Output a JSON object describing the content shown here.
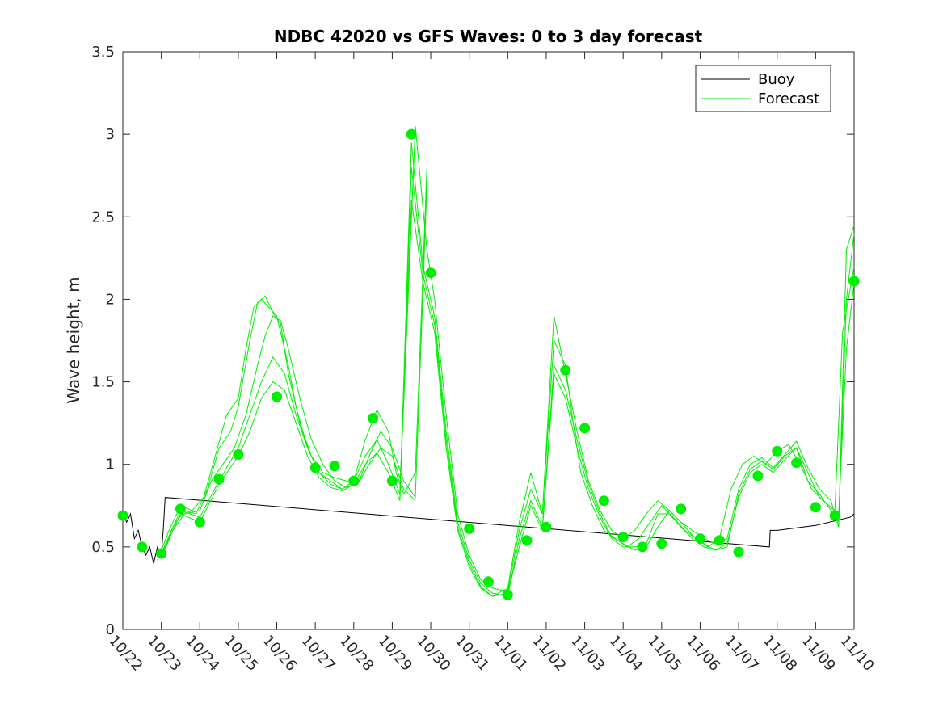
{
  "chart_data": {
    "type": "line",
    "title": "NDBC 42020 vs GFS Waves: 0 to 3 day forecast",
    "xlabel": "",
    "ylabel": "Wave height, m",
    "xlim": [
      0,
      19
    ],
    "ylim": [
      0,
      3.5
    ],
    "yticks": [
      0,
      0.5,
      1,
      1.5,
      2,
      2.5,
      3,
      3.5
    ],
    "ytick_labels": [
      "0",
      "0.5",
      "1",
      "1.5",
      "2",
      "2.5",
      "3",
      "3.5"
    ],
    "xtick_labels": [
      "10/22",
      "10/23",
      "10/24",
      "10/25",
      "10/26",
      "10/27",
      "10/28",
      "10/29",
      "10/30",
      "10/31",
      "11/01",
      "11/02",
      "11/03",
      "11/04",
      "11/05",
      "11/06",
      "11/07",
      "11/08",
      "11/09",
      "11/10"
    ],
    "grid": false,
    "legend_position": "top-right",
    "colors": {
      "buoy": "#000000",
      "forecast": "#00ee00"
    },
    "series": [
      {
        "name": "Buoy",
        "x": [
          0,
          0.1,
          0.2,
          0.3,
          0.4,
          0.5,
          0.6,
          0.7,
          0.8,
          0.9,
          1.0,
          1.05,
          1.1,
          16.8,
          16.82,
          17.0,
          18.0,
          18.9,
          19.0
        ],
        "y": [
          0.7,
          0.65,
          0.7,
          0.55,
          0.6,
          0.5,
          0.45,
          0.5,
          0.4,
          0.5,
          0.45,
          0.6,
          0.8,
          0.5,
          0.6,
          0.6,
          0.63,
          0.68,
          0.7
        ]
      },
      {
        "name": "Forecast",
        "markers": {
          "x": [
            0,
            0.5,
            1.0,
            1.5,
            2.0,
            2.5,
            3.0,
            4.0,
            5.0,
            5.5,
            6.0,
            6.5,
            7.0,
            7.5,
            8.0,
            9.0,
            9.5,
            10.0,
            10.5,
            11.0,
            11.5,
            12.0,
            12.5,
            13.0,
            13.5,
            14.0,
            14.5,
            15.0,
            15.5,
            16.0,
            16.5,
            17.0,
            17.5,
            18.0,
            18.5,
            19.0
          ],
          "y": [
            0.69,
            0.5,
            0.46,
            0.73,
            0.65,
            0.91,
            1.06,
            1.41,
            0.98,
            0.99,
            0.9,
            1.28,
            0.9,
            3.0,
            2.16,
            0.61,
            0.29,
            0.21,
            0.54,
            0.62,
            1.57,
            1.22,
            0.78,
            0.56,
            0.5,
            0.52,
            0.73,
            0.55,
            0.54,
            0.47,
            0.93,
            1.08,
            1.01,
            0.74,
            0.69,
            2.11
          ]
        },
        "runs": [
          {
            "x": [
              0.9,
              1.2,
              1.5,
              1.8,
              2.1,
              2.4,
              2.7,
              3.0,
              3.2,
              3.4,
              3.6,
              3.8,
              4.0,
              4.3,
              4.5,
              4.8,
              5.1,
              5.4,
              5.7,
              6.0,
              6.3,
              6.6,
              6.9,
              7.1,
              7.3,
              7.6,
              7.9
            ],
            "y": [
              0.42,
              0.6,
              0.75,
              0.72,
              0.8,
              1.05,
              1.3,
              1.4,
              1.7,
              1.95,
              2.0,
              1.95,
              1.9,
              1.6,
              1.35,
              1.1,
              0.95,
              0.9,
              0.85,
              0.9,
              1.15,
              1.33,
              1.2,
              0.95,
              0.82,
              0.95,
              2.8
            ]
          },
          {
            "x": [
              1.0,
              1.3,
              1.6,
              1.9,
              2.2,
              2.5,
              2.8,
              3.0,
              3.3,
              3.5,
              3.7,
              3.9,
              4.1,
              4.3,
              4.6,
              4.9,
              5.2,
              5.5,
              5.8,
              6.1,
              6.4,
              6.7,
              7.0,
              7.3,
              7.6,
              7.9
            ],
            "y": [
              0.45,
              0.62,
              0.72,
              0.7,
              0.85,
              1.1,
              1.2,
              1.35,
              1.75,
              1.98,
              2.02,
              1.92,
              1.85,
              1.55,
              1.25,
              1.05,
              0.95,
              0.92,
              0.9,
              0.88,
              1.05,
              1.2,
              1.1,
              0.9,
              0.8,
              2.7
            ]
          },
          {
            "x": [
              1.0,
              1.3,
              1.6,
              2.0,
              2.3,
              2.6,
              2.9,
              3.2,
              3.5,
              3.7,
              3.9,
              4.1,
              4.3,
              4.6,
              4.9,
              5.2,
              5.5,
              5.8,
              6.1,
              6.4,
              6.7,
              7.0,
              7.3,
              7.6
            ],
            "y": [
              0.43,
              0.6,
              0.7,
              0.72,
              0.9,
              1.0,
              1.1,
              1.3,
              1.6,
              1.78,
              1.9,
              1.87,
              1.7,
              1.4,
              1.15,
              1.0,
              0.9,
              0.86,
              0.88,
              1.0,
              1.1,
              1.05,
              0.85,
              0.78
            ]
          },
          {
            "x": [
              1.0,
              1.5,
              2.0,
              2.5,
              3.0,
              3.3,
              3.6,
              3.9,
              4.2,
              4.5,
              4.8,
              5.1,
              5.4,
              5.7,
              6.0,
              6.3,
              6.6,
              6.9,
              7.2,
              7.6,
              7.9,
              8.1,
              8.4,
              8.7,
              9.0,
              9.3,
              9.6,
              10.0,
              10.3,
              10.6,
              10.9,
              11.2,
              11.5,
              11.7,
              11.9,
              12.2,
              12.5,
              12.8,
              13.1,
              13.4,
              13.7,
              14.0,
              14.3,
              14.6,
              14.9,
              15.2,
              15.5,
              15.8,
              16.1,
              16.4,
              16.7,
              17.0,
              17.3,
              17.6,
              17.9,
              18.2,
              18.5,
              18.7,
              19.0
            ],
            "y": [
              0.46,
              0.72,
              0.68,
              0.9,
              1.1,
              1.3,
              1.5,
              1.65,
              1.55,
              1.3,
              1.1,
              0.95,
              0.88,
              0.85,
              0.9,
              1.05,
              1.15,
              1.0,
              0.82,
              3.05,
              2.3,
              2.0,
              1.3,
              0.7,
              0.45,
              0.3,
              0.25,
              0.23,
              0.6,
              0.85,
              0.7,
              1.75,
              1.6,
              1.25,
              0.95,
              0.75,
              0.6,
              0.55,
              0.5,
              0.55,
              0.65,
              0.75,
              0.68,
              0.6,
              0.55,
              0.5,
              0.55,
              0.85,
              1.0,
              1.05,
              1.0,
              1.08,
              1.12,
              1.0,
              0.85,
              0.78,
              0.72,
              1.8,
              2.2
            ]
          },
          {
            "x": [
              1.0,
              1.5,
              2.0,
              2.5,
              3.0,
              3.3,
              3.6,
              3.9,
              4.2,
              4.5,
              4.8,
              5.1,
              5.4,
              5.7,
              6.0,
              6.3,
              6.6,
              6.9,
              7.2,
              7.5,
              7.8,
              8.1,
              8.4,
              8.7,
              9.0,
              9.3,
              9.6,
              10.0,
              10.3,
              10.6,
              10.9,
              11.2,
              11.5,
              11.8,
              12.1,
              12.4,
              12.7,
              13.0,
              13.3,
              13.6,
              13.9,
              14.2,
              14.5,
              14.8,
              15.1,
              15.4,
              15.7,
              16.0,
              16.3,
              16.6,
              16.9,
              17.2,
              17.5,
              17.8,
              18.1,
              18.4,
              18.6,
              18.8,
              19.0
            ],
            "y": [
              0.45,
              0.7,
              0.65,
              0.88,
              1.05,
              1.2,
              1.4,
              1.5,
              1.45,
              1.25,
              1.05,
              0.92,
              0.86,
              0.84,
              0.88,
              1.0,
              1.07,
              0.95,
              0.78,
              2.95,
              2.2,
              1.9,
              1.2,
              0.65,
              0.42,
              0.28,
              0.22,
              0.2,
              0.55,
              0.78,
              0.62,
              1.6,
              1.45,
              1.15,
              0.88,
              0.7,
              0.56,
              0.52,
              0.48,
              0.5,
              0.62,
              0.72,
              0.65,
              0.57,
              0.52,
              0.48,
              0.5,
              0.82,
              0.97,
              1.02,
              0.97,
              1.05,
              1.1,
              0.95,
              0.8,
              0.74,
              0.7,
              1.7,
              2.1
            ]
          },
          {
            "x": [
              7.2,
              7.5,
              7.8,
              8.1,
              8.4,
              8.7,
              9.0,
              9.3,
              9.6,
              10.0,
              10.3,
              10.6,
              10.9,
              11.2,
              11.5,
              11.8,
              12.1,
              12.4,
              12.7,
              13.0,
              13.3,
              13.6,
              13.9,
              14.2,
              14.5,
              14.8,
              15.1,
              15.4,
              15.7,
              16.0,
              16.3,
              16.6,
              16.9,
              17.2,
              17.5,
              17.8,
              18.1,
              18.4,
              18.6,
              18.8,
              19.0
            ],
            "y": [
              0.8,
              2.8,
              2.15,
              1.85,
              1.15,
              0.62,
              0.4,
              0.26,
              0.2,
              0.22,
              0.5,
              0.75,
              0.6,
              1.55,
              1.4,
              1.1,
              0.85,
              0.68,
              0.55,
              0.5,
              0.5,
              0.52,
              0.7,
              0.7,
              0.62,
              0.55,
              0.5,
              0.48,
              0.52,
              0.8,
              0.95,
              1.0,
              0.95,
              1.03,
              1.1,
              0.9,
              0.82,
              0.72,
              0.65,
              2.0,
              2.4
            ]
          },
          {
            "x": [
              7.2,
              7.5,
              7.8,
              8.1,
              8.4,
              8.7,
              9.0,
              9.3,
              9.6,
              10.0,
              10.3,
              10.6,
              10.9,
              11.2,
              11.5,
              11.8,
              12.1,
              12.4,
              12.7,
              13.0,
              13.3,
              13.6,
              13.9,
              14.2,
              14.5,
              14.8,
              15.1,
              15.4,
              15.7,
              16.0,
              16.3,
              16.6,
              16.9,
              17.2,
              17.5,
              17.8,
              18.1,
              18.4,
              18.6,
              18.8,
              19.0
            ],
            "y": [
              0.85,
              2.6,
              2.1,
              1.8,
              1.1,
              0.6,
              0.38,
              0.25,
              0.2,
              0.25,
              0.65,
              0.95,
              0.7,
              1.9,
              1.55,
              1.2,
              0.9,
              0.72,
              0.6,
              0.55,
              0.6,
              0.7,
              0.78,
              0.72,
              0.65,
              0.6,
              0.55,
              0.52,
              0.55,
              0.85,
              1.0,
              1.04,
              0.98,
              1.06,
              1.14,
              0.98,
              0.85,
              0.78,
              0.62,
              2.3,
              2.45
            ]
          }
        ]
      }
    ]
  }
}
